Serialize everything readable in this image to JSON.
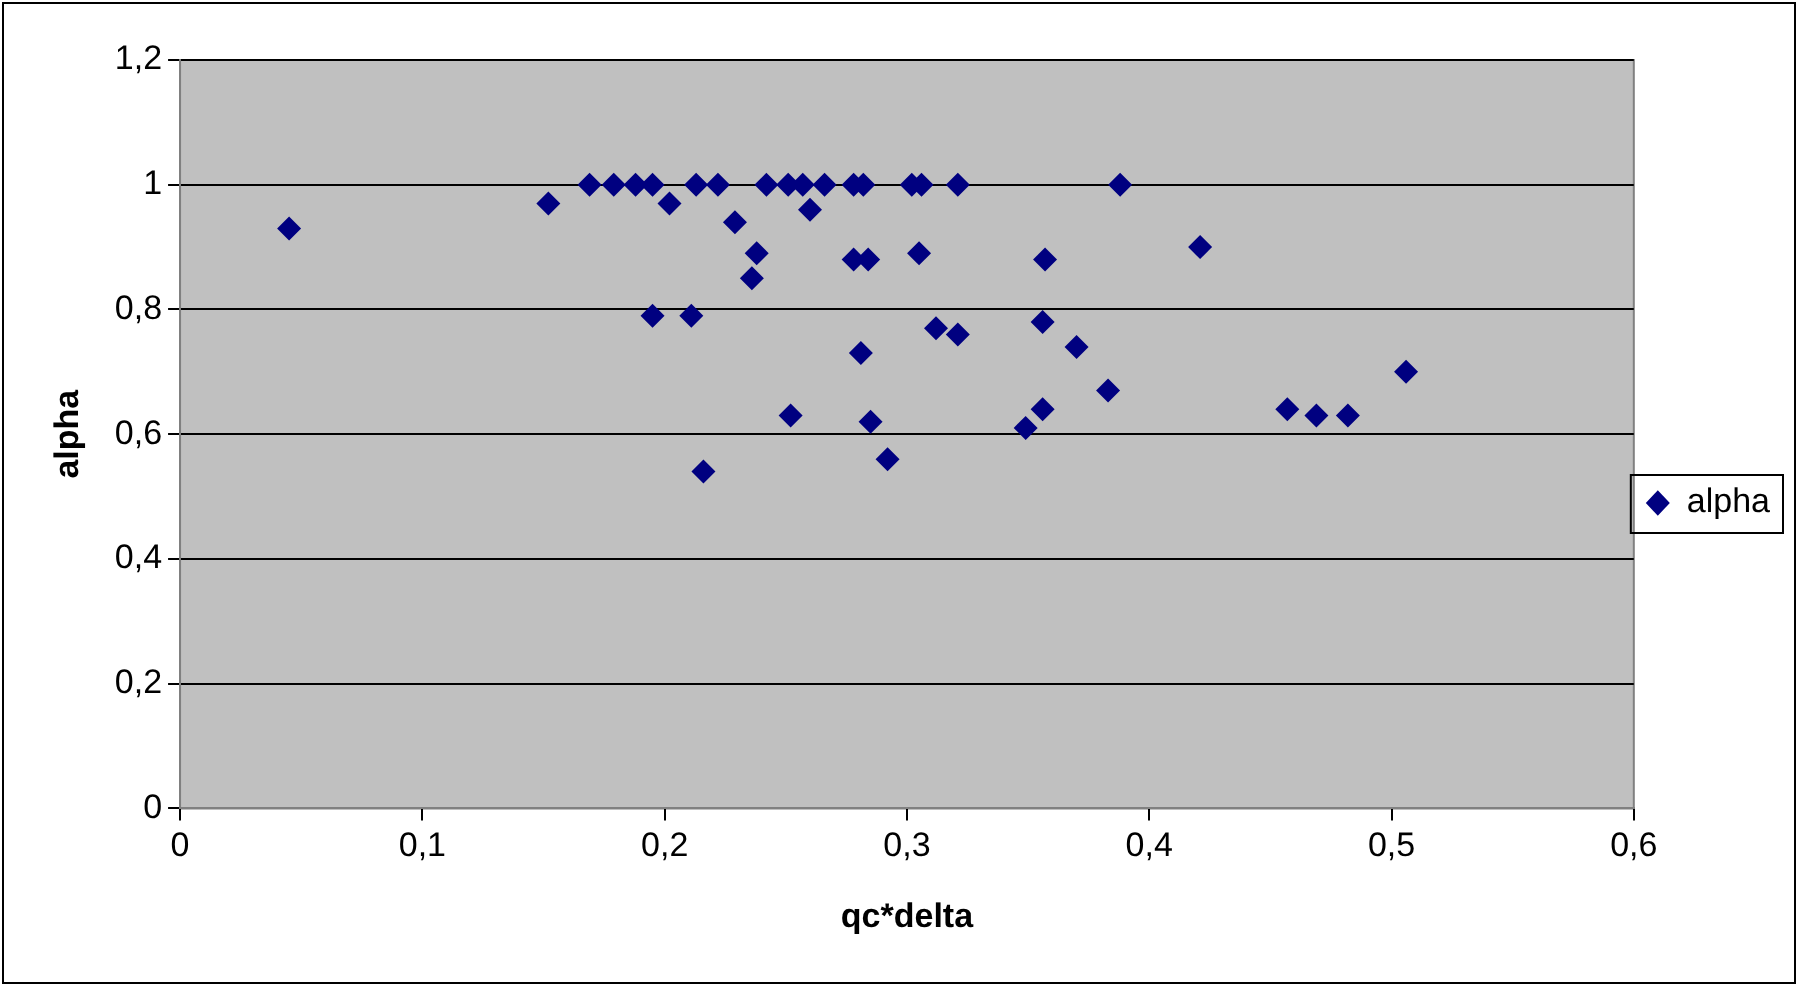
{
  "chart_data": {
    "type": "scatter",
    "xlabel": "qc*delta",
    "ylabel": "alpha",
    "marker": "diamond",
    "legend": "right",
    "grid": "y",
    "xlim": [
      0,
      0.6
    ],
    "ylim": [
      0,
      1.2
    ],
    "xticks": [
      0,
      {
        "value": 0.1,
        "label": "0,1"
      },
      {
        "value": 0.2,
        "label": "0,2"
      },
      {
        "value": 0.3,
        "label": "0,3"
      },
      {
        "value": 0.4,
        "label": "0,4"
      },
      {
        "value": 0.5,
        "label": "0,5"
      },
      {
        "value": 0.6,
        "label": "0,6"
      }
    ],
    "yticks": [
      0,
      {
        "value": 0.2,
        "label": "0,2"
      },
      {
        "value": 0.4,
        "label": "0,4"
      },
      {
        "value": 0.6,
        "label": "0,6"
      },
      {
        "value": 0.8,
        "label": "0,8"
      },
      1,
      {
        "value": 1.2,
        "label": "1,2"
      }
    ],
    "series": [
      {
        "name": "alpha",
        "color": "#000080",
        "x": [
          0.045,
          0.152,
          0.169,
          0.179,
          0.188,
          0.195,
          0.213,
          0.222,
          0.242,
          0.251,
          0.257,
          0.266,
          0.278,
          0.282,
          0.302,
          0.306,
          0.321,
          0.388,
          0.202,
          0.229,
          0.26,
          0.238,
          0.236,
          0.278,
          0.284,
          0.305,
          0.357,
          0.195,
          0.211,
          0.312,
          0.321,
          0.356,
          0.37,
          0.281,
          0.383,
          0.356,
          0.349,
          0.252,
          0.285,
          0.292,
          0.216,
          0.421,
          0.506,
          0.457,
          0.469,
          0.482
        ],
        "values": [
          0.93,
          0.97,
          1,
          1,
          1,
          1,
          1,
          1,
          1,
          1,
          1,
          1,
          1,
          1,
          1,
          1,
          1,
          1,
          0.97,
          0.94,
          0.96,
          0.89,
          0.85,
          0.88,
          0.88,
          0.89,
          0.88,
          0.79,
          0.79,
          0.77,
          0.76,
          0.78,
          0.74,
          0.73,
          0.67,
          0.64,
          0.61,
          0.63,
          0.62,
          0.56,
          0.54,
          0.9,
          0.7,
          0.64,
          0.63,
          0.63
        ]
      }
    ]
  }
}
